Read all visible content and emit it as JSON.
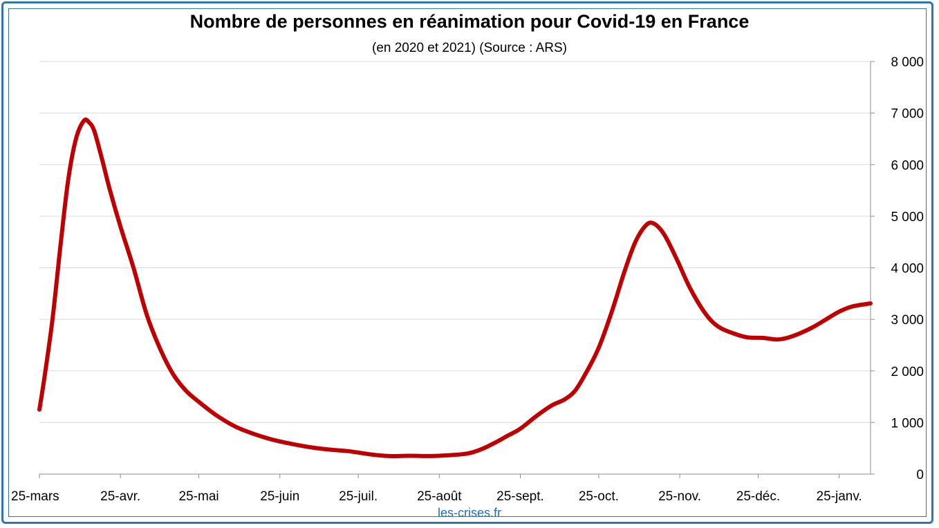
{
  "chart_data": {
    "type": "line",
    "title": "Nombre de personnes en réanimation pour Covid-19 en France",
    "subtitle": "(en 2020 et 2021) (Source : ARS)",
    "y_axis_position": "right",
    "grid": "horizontal",
    "ylim": [
      0,
      8000
    ],
    "y_ticks": [
      0,
      1000,
      2000,
      3000,
      4000,
      5000,
      6000,
      7000,
      8000
    ],
    "y_tick_labels": [
      "0",
      "1 000",
      "2 000",
      "3 000",
      "4 000",
      "5 000",
      "6 000",
      "7 000",
      "8 000"
    ],
    "x_range": [
      "2020-03-25",
      "2021-02-06"
    ],
    "x_ticks": [
      "2020-03-25",
      "2020-04-25",
      "2020-05-25",
      "2020-06-25",
      "2020-07-25",
      "2020-08-25",
      "2020-09-25",
      "2020-10-25",
      "2020-11-25",
      "2020-12-25",
      "2021-01-25"
    ],
    "x_tick_labels": [
      "25-mars",
      "25-avr.",
      "25-mai",
      "25-juin",
      "25-juil.",
      "25-août",
      "25-sept.",
      "25-oct.",
      "25-nov.",
      "25-déc.",
      "25-janv."
    ],
    "line_color": "#c00000",
    "series": [
      {
        "points": [
          [
            "2020-03-25",
            1250
          ],
          [
            "2020-03-27",
            1900
          ],
          [
            "2020-03-30",
            3000
          ],
          [
            "2020-04-02",
            4400
          ],
          [
            "2020-04-05",
            5700
          ],
          [
            "2020-04-08",
            6500
          ],
          [
            "2020-04-11",
            6850
          ],
          [
            "2020-04-13",
            6820
          ],
          [
            "2020-04-15",
            6650
          ],
          [
            "2020-04-18",
            6100
          ],
          [
            "2020-04-21",
            5500
          ],
          [
            "2020-04-25",
            4800
          ],
          [
            "2020-04-30",
            4000
          ],
          [
            "2020-05-05",
            3100
          ],
          [
            "2020-05-10",
            2450
          ],
          [
            "2020-05-15",
            1950
          ],
          [
            "2020-05-20",
            1620
          ],
          [
            "2020-05-25",
            1400
          ],
          [
            "2020-06-01",
            1130
          ],
          [
            "2020-06-08",
            920
          ],
          [
            "2020-06-15",
            780
          ],
          [
            "2020-06-22",
            670
          ],
          [
            "2020-06-30",
            580
          ],
          [
            "2020-07-08",
            510
          ],
          [
            "2020-07-15",
            470
          ],
          [
            "2020-07-22",
            440
          ],
          [
            "2020-07-30",
            380
          ],
          [
            "2020-08-06",
            350
          ],
          [
            "2020-08-14",
            355
          ],
          [
            "2020-08-22",
            350
          ],
          [
            "2020-08-30",
            370
          ],
          [
            "2020-09-05",
            400
          ],
          [
            "2020-09-10",
            480
          ],
          [
            "2020-09-15",
            600
          ],
          [
            "2020-09-20",
            740
          ],
          [
            "2020-09-25",
            880
          ],
          [
            "2020-10-01",
            1120
          ],
          [
            "2020-10-07",
            1330
          ],
          [
            "2020-10-12",
            1450
          ],
          [
            "2020-10-16",
            1620
          ],
          [
            "2020-10-20",
            1950
          ],
          [
            "2020-10-25",
            2450
          ],
          [
            "2020-10-30",
            3150
          ],
          [
            "2020-11-04",
            3950
          ],
          [
            "2020-11-08",
            4500
          ],
          [
            "2020-11-12",
            4820
          ],
          [
            "2020-11-15",
            4860
          ],
          [
            "2020-11-19",
            4650
          ],
          [
            "2020-11-24",
            4150
          ],
          [
            "2020-11-29",
            3600
          ],
          [
            "2020-12-05",
            3100
          ],
          [
            "2020-12-10",
            2850
          ],
          [
            "2020-12-16",
            2720
          ],
          [
            "2020-12-21",
            2650
          ],
          [
            "2020-12-27",
            2640
          ],
          [
            "2021-01-01",
            2610
          ],
          [
            "2021-01-05",
            2640
          ],
          [
            "2021-01-10",
            2730
          ],
          [
            "2021-01-15",
            2850
          ],
          [
            "2021-01-20",
            3000
          ],
          [
            "2021-01-25",
            3150
          ],
          [
            "2021-01-30",
            3250
          ],
          [
            "2021-02-06",
            3310
          ]
        ]
      }
    ]
  },
  "footer": {
    "source_text": "les-crises.fr"
  }
}
